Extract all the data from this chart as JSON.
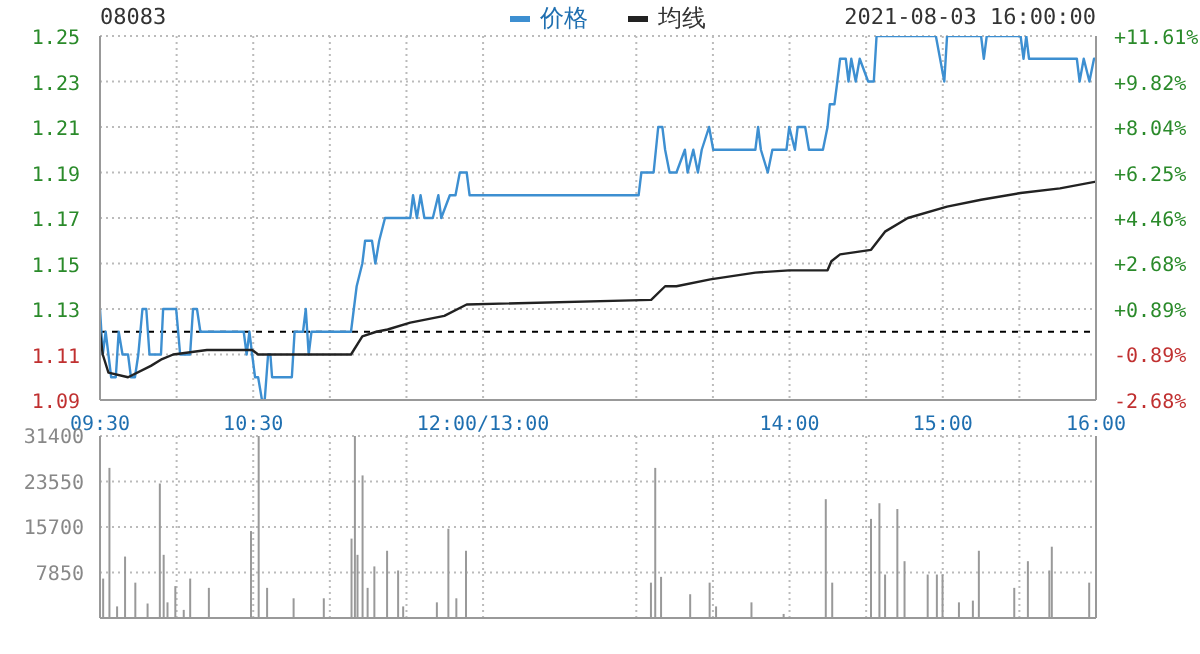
{
  "chart_data": [
    {
      "type": "line",
      "title": "08083",
      "annotations": [
        "2021-08-03 16:00:00"
      ],
      "legend": "top",
      "grid": true,
      "marker": "none",
      "xlim": [
        9.5,
        16
      ],
      "xticks": [
        {
          "value": 9.5,
          "label": "09:30"
        },
        {
          "value": 10,
          "label": null
        },
        {
          "value": 10.5,
          "label": "10:30"
        },
        {
          "value": 11,
          "label": null
        },
        {
          "value": 11.5,
          "label": null
        },
        {
          "value": 12,
          "label": "12:00/13:00"
        },
        {
          "value": 13,
          "label": null
        },
        {
          "value": 13.5,
          "label": null
        },
        {
          "value": 14,
          "label": "14:00"
        },
        {
          "value": 14.5,
          "label": null
        },
        {
          "value": 15,
          "label": "15:00"
        },
        {
          "value": 15.5,
          "label": null
        },
        {
          "value": 16,
          "label": "16:00"
        }
      ],
      "ylim": [
        1.09,
        1.25
      ],
      "yticks": [
        1.09,
        1.11,
        1.13,
        1.15,
        1.17,
        1.19,
        1.21,
        1.23,
        1.25
      ],
      "y2lim": [
        -2.68,
        11.61
      ],
      "y2ticks": [
        {
          "value": -2.68,
          "label": "-2.68%"
        },
        {
          "value": -0.89,
          "label": "-0.89%"
        },
        {
          "value": 0.89,
          "label": "+0.89%"
        },
        {
          "value": 2.68,
          "label": "+2.68%"
        },
        {
          "value": 4.46,
          "label": "+4.46%"
        },
        {
          "value": 6.25,
          "label": "+6.25%"
        },
        {
          "value": 8.04,
          "label": "+8.04%"
        },
        {
          "value": 9.82,
          "label": "+9.82%"
        },
        {
          "value": 11.61,
          "label": "+11.61%"
        }
      ],
      "ref_lines": [
        {
          "axis": "y",
          "value": 1.12,
          "color": "#000000",
          "line_style": "dashed"
        }
      ],
      "series": [
        {
          "name": "价格",
          "color": "#3d8fd1",
          "x": [
            9.5,
            9.518,
            9.537,
            9.555,
            9.573,
            9.603,
            9.622,
            9.647,
            9.683,
            9.702,
            9.728,
            9.75,
            9.777,
            9.802,
            9.823,
            9.898,
            9.912,
            9.997,
            10.023,
            10.052,
            10.088,
            10.107,
            10.133,
            10.155,
            10.438,
            10.457,
            10.475,
            10.493,
            10.512,
            10.532,
            10.557,
            10.575,
            10.597,
            10.612,
            10.623,
            10.752,
            10.77,
            10.797,
            10.825,
            10.843,
            10.862,
            10.88,
            11.138,
            11.175,
            11.212,
            11.23,
            11.275,
            11.297,
            11.322,
            11.36,
            11.525,
            11.543,
            11.568,
            11.592,
            11.617,
            11.672,
            11.708,
            11.727,
            11.783,
            11.82,
            11.848,
            11.893,
            11.912,
            13.015,
            13.033,
            13.113,
            13.143,
            13.17,
            13.188,
            13.217,
            13.262,
            13.317,
            13.335,
            13.372,
            13.402,
            13.427,
            13.475,
            13.502,
            13.777,
            13.795,
            13.813,
            13.858,
            13.888,
            13.98,
            13.998,
            14.035,
            14.053,
            14.102,
            14.127,
            14.218,
            14.248,
            14.263,
            14.293,
            14.312,
            14.33,
            14.367,
            14.385,
            14.403,
            14.432,
            14.458,
            14.513,
            14.55,
            14.568,
            14.955,
            15.01,
            15.028,
            15.25,
            15.268,
            15.287,
            15.508,
            15.527,
            15.545,
            15.563,
            15.875,
            15.893,
            15.92,
            15.957,
            15.987,
            16
          ],
          "values": [
            1.13,
            1.11,
            1.12,
            1.11,
            1.1,
            1.1,
            1.12,
            1.11,
            1.11,
            1.1,
            1.1,
            1.11,
            1.13,
            1.13,
            1.11,
            1.11,
            1.13,
            1.13,
            1.11,
            1.11,
            1.11,
            1.13,
            1.13,
            1.12,
            1.12,
            1.11,
            1.12,
            1.11,
            1.1,
            1.1,
            1.09,
            1.09,
            1.11,
            1.11,
            1.1,
            1.1,
            1.12,
            1.12,
            1.12,
            1.13,
            1.11,
            1.12,
            1.12,
            1.14,
            1.15,
            1.16,
            1.16,
            1.15,
            1.16,
            1.17,
            1.17,
            1.18,
            1.17,
            1.18,
            1.17,
            1.17,
            1.18,
            1.17,
            1.18,
            1.18,
            1.19,
            1.19,
            1.18,
            1.18,
            1.19,
            1.19,
            1.21,
            1.21,
            1.2,
            1.19,
            1.19,
            1.2,
            1.19,
            1.2,
            1.19,
            1.2,
            1.21,
            1.2,
            1.2,
            1.21,
            1.2,
            1.19,
            1.2,
            1.2,
            1.21,
            1.2,
            1.21,
            1.21,
            1.2,
            1.2,
            1.21,
            1.22,
            1.22,
            1.23,
            1.24,
            1.24,
            1.23,
            1.24,
            1.23,
            1.24,
            1.23,
            1.23,
            1.25,
            1.25,
            1.23,
            1.25,
            1.25,
            1.24,
            1.25,
            1.25,
            1.24,
            1.25,
            1.24,
            1.24,
            1.23,
            1.24,
            1.23,
            1.24,
            1.24
          ]
        },
        {
          "name": "均线",
          "color": "#222222",
          "x": [
            9.5,
            9.518,
            9.555,
            9.683,
            9.832,
            9.905,
            9.978,
            10.198,
            10.493,
            10.532,
            11.138,
            11.212,
            11.303,
            11.377,
            11.525,
            11.747,
            11.893,
            13.097,
            13.188,
            13.262,
            13.483,
            13.777,
            13.998,
            14.248,
            14.273,
            14.33,
            14.532,
            14.623,
            14.772,
            15.028,
            15.25,
            15.508,
            15.765,
            16
          ],
          "values": [
            1.12,
            1.11,
            1.102,
            1.1,
            1.105,
            1.108,
            1.11,
            1.112,
            1.112,
            1.11,
            1.11,
            1.118,
            1.12,
            1.121,
            1.124,
            1.127,
            1.132,
            1.134,
            1.14,
            1.14,
            1.143,
            1.146,
            1.147,
            1.147,
            1.151,
            1.154,
            1.156,
            1.164,
            1.17,
            1.175,
            1.178,
            1.181,
            1.183,
            1.186
          ]
        }
      ]
    },
    {
      "type": "bar",
      "grid": true,
      "tick_labels": "y",
      "xlim": [
        9.5,
        16
      ],
      "xticks": [
        {
          "value": 9.5,
          "label": null
        },
        {
          "value": 10,
          "label": null
        },
        {
          "value": 10.5,
          "label": null
        },
        {
          "value": 11,
          "label": null
        },
        {
          "value": 11.5,
          "label": null
        },
        {
          "value": 12,
          "label": null
        },
        {
          "value": 13,
          "label": null
        },
        {
          "value": 13.5,
          "label": null
        },
        {
          "value": 14,
          "label": null
        },
        {
          "value": 14.5,
          "label": null
        },
        {
          "value": 15,
          "label": null
        },
        {
          "value": 15.5,
          "label": null
        },
        {
          "value": 16,
          "label": null
        }
      ],
      "ylim": [
        0,
        31400
      ],
      "yticks": [
        7850,
        15700,
        23550,
        31400
      ],
      "series": [
        {
          "color": "#999999",
          "x": [
            9.522,
            9.563,
            9.613,
            9.665,
            9.732,
            9.812,
            9.892,
            9.917,
            9.942,
            9.993,
            10.048,
            10.09,
            10.212,
            10.487,
            10.537,
            10.592,
            10.765,
            10.962,
            11.143,
            11.165,
            11.182,
            11.215,
            11.248,
            11.292,
            11.375,
            11.447,
            11.48,
            11.7,
            11.775,
            11.827,
            11.89,
            13.097,
            13.125,
            13.163,
            13.353,
            13.48,
            13.522,
            13.753,
            13.963,
            14.238,
            14.28,
            14.533,
            14.588,
            14.625,
            14.705,
            14.752,
            14.903,
            14.963,
            15,
            15.107,
            15.198,
            15.237,
            15.468,
            15.557,
            15.697,
            15.713,
            15.957
          ],
          "values": [
            6800,
            25900,
            2000,
            10600,
            6100,
            2500,
            23200,
            10900,
            2700,
            5500,
            1400,
            6800,
            5200,
            15000,
            31400,
            5200,
            3400,
            3400,
            13700,
            31400,
            10900,
            24600,
            5200,
            8900,
            11600,
            8200,
            2000,
            2700,
            15400,
            3400,
            11600,
            6100,
            25900,
            7100,
            4100,
            6100,
            2000,
            2700,
            700,
            20500,
            6100,
            17100,
            19800,
            7500,
            18800,
            9800,
            7500,
            7500,
            7500,
            2700,
            3000,
            11600,
            5200,
            9800,
            8200,
            12300,
            6100
          ]
        }
      ]
    }
  ]
}
